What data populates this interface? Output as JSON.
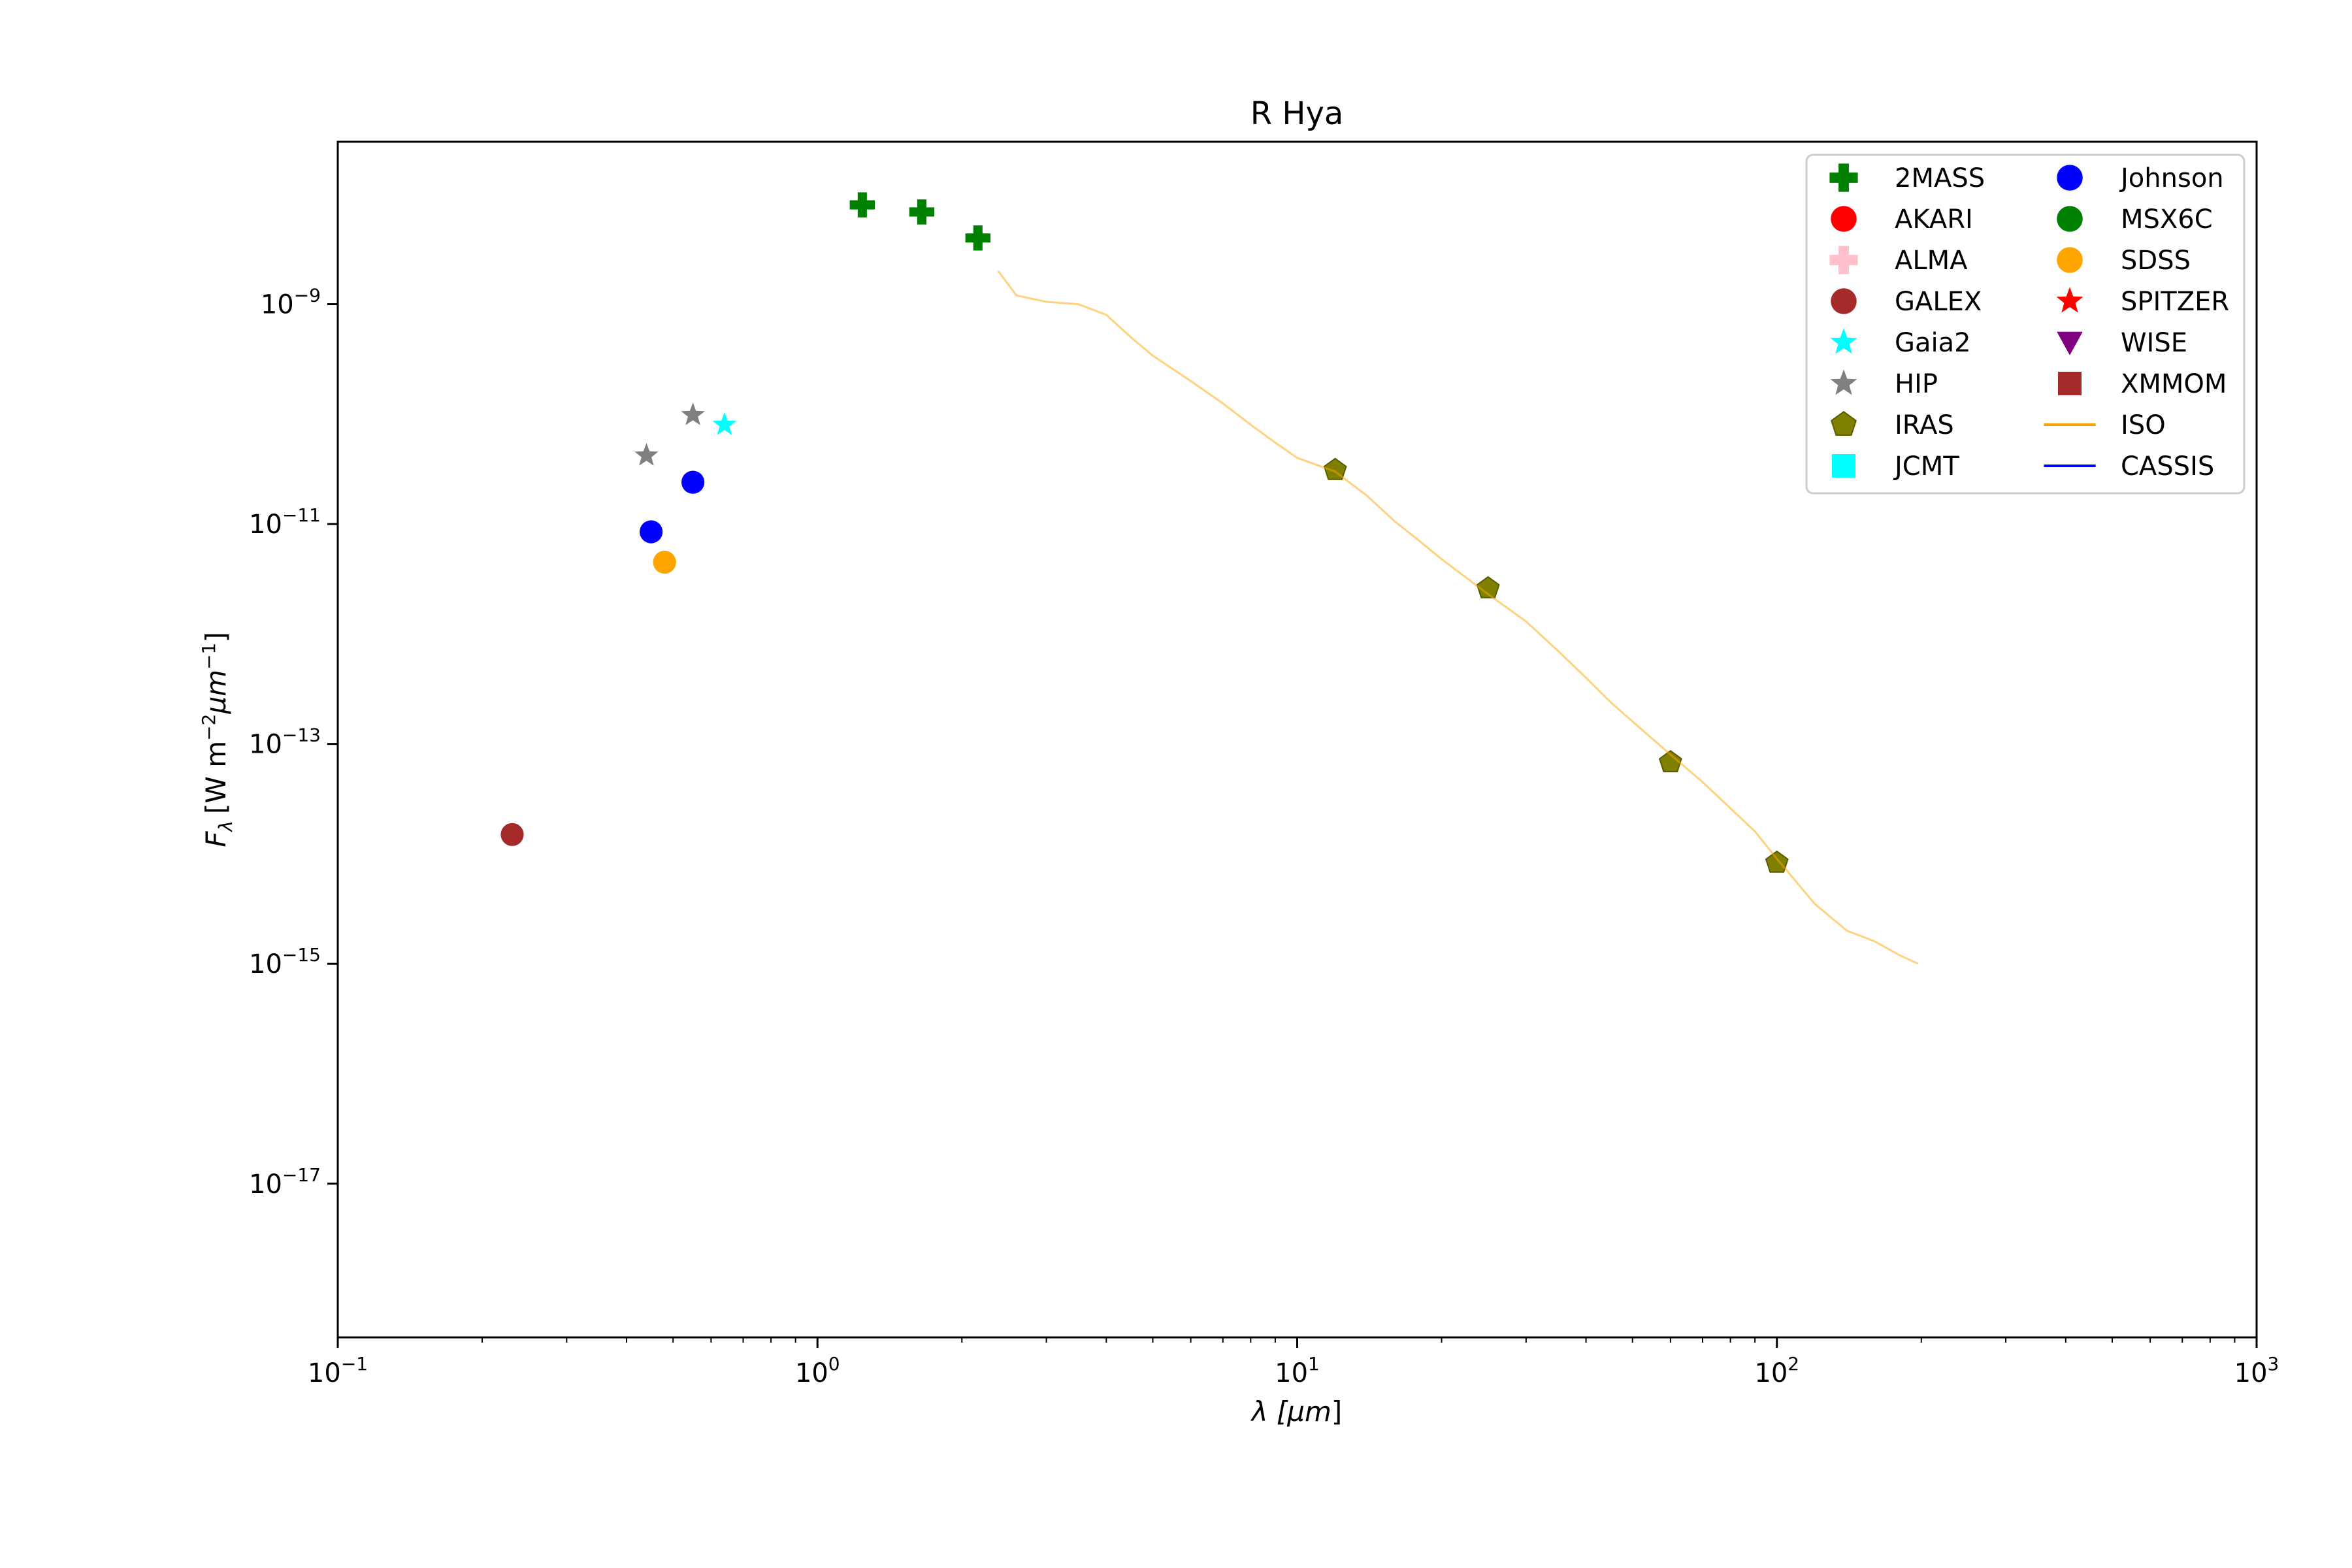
{
  "chart_data": {
    "type": "scatter",
    "title": "R Hya",
    "xlabel": {
      "main": "λ [",
      "unit": "μm",
      "close": "]"
    },
    "ylabel": {
      "sym": "F",
      "sub": "λ",
      "unit": "[W m",
      "exp1": "−2",
      "mid": "μm",
      "exp2": "−1",
      "close": "]"
    },
    "x_scale": "log",
    "y_scale": "log",
    "xlim": [
      0.1,
      1000
    ],
    "ylim": [
      4e-19,
      3e-08
    ],
    "x_ticks": [
      {
        "value": 0.1,
        "base": "10",
        "exp": "−1"
      },
      {
        "value": 1,
        "base": "10",
        "exp": "0"
      },
      {
        "value": 10,
        "base": "10",
        "exp": "1"
      },
      {
        "value": 100,
        "base": "10",
        "exp": "2"
      },
      {
        "value": 1000,
        "base": "10",
        "exp": "3"
      }
    ],
    "y_ticks": [
      {
        "value": 1e-09,
        "base": "10",
        "exp": "−9"
      },
      {
        "value": 1e-11,
        "base": "10",
        "exp": "−11"
      },
      {
        "value": 1e-13,
        "base": "10",
        "exp": "−13"
      },
      {
        "value": 1e-15,
        "base": "10",
        "exp": "−15"
      },
      {
        "value": 1e-17,
        "base": "10",
        "exp": "−17"
      }
    ],
    "grid": false,
    "legend_position": "top-right",
    "legend": [
      {
        "name": "2MASS",
        "marker": "plus",
        "color": "#008000"
      },
      {
        "name": "AKARI",
        "marker": "circle",
        "color": "#ff0000"
      },
      {
        "name": "ALMA",
        "marker": "plus",
        "color": "#ffc0cb"
      },
      {
        "name": "GALEX",
        "marker": "circle",
        "color": "#a52a2a"
      },
      {
        "name": "Gaia2",
        "marker": "star",
        "color": "#00ffff"
      },
      {
        "name": "HIP",
        "marker": "star",
        "color": "#808080"
      },
      {
        "name": "IRAS",
        "marker": "pentagon",
        "color": "#808000"
      },
      {
        "name": "JCMT",
        "marker": "square",
        "color": "#00ffff"
      },
      {
        "name": "Johnson",
        "marker": "circle",
        "color": "#0000ff"
      },
      {
        "name": "MSX6C",
        "marker": "circle",
        "color": "#008000"
      },
      {
        "name": "SDSS",
        "marker": "circle",
        "color": "#ffa500"
      },
      {
        "name": "SPITZER",
        "marker": "star",
        "color": "#ff0000"
      },
      {
        "name": "WISE",
        "marker": "triangle-down",
        "color": "#800080"
      },
      {
        "name": "XMMOM",
        "marker": "square",
        "color": "#a52a2a"
      },
      {
        "name": "ISO",
        "marker": "line",
        "color": "#ffa500"
      },
      {
        "name": "CASSIS",
        "marker": "line",
        "color": "#0000ff"
      }
    ],
    "series": [
      {
        "name": "2MASS",
        "marker": "plus",
        "color": "#008000",
        "x": [
          1.24,
          1.65,
          2.16
        ],
        "y": [
          8e-09,
          6.9e-09,
          4e-09
        ]
      },
      {
        "name": "GALEX",
        "marker": "circle",
        "color": "#a52a2a",
        "x": [
          0.231
        ],
        "y": [
          1.5e-14
        ]
      },
      {
        "name": "Gaia2",
        "marker": "star",
        "color": "#00ffff",
        "x": [
          0.64
        ],
        "y": [
          8e-11
        ]
      },
      {
        "name": "HIP",
        "marker": "star",
        "color": "#808080",
        "x": [
          0.44,
          0.55
        ],
        "y": [
          4.2e-11,
          9.8e-11
        ]
      },
      {
        "name": "IRAS",
        "marker": "pentagon",
        "color": "#808000",
        "x": [
          12,
          25,
          60,
          100
        ],
        "y": [
          3.1e-11,
          2.6e-12,
          6.8e-14,
          8.3e-15
        ]
      },
      {
        "name": "Johnson",
        "marker": "circle",
        "color": "#0000ff",
        "x": [
          0.45,
          0.55
        ],
        "y": [
          8.5e-12,
          2.4e-11
        ]
      },
      {
        "name": "SDSS",
        "marker": "circle",
        "color": "#ffa500",
        "x": [
          0.48
        ],
        "y": [
          4.5e-12
        ]
      },
      {
        "name": "ISO",
        "marker": "line",
        "color": "#ffa500",
        "x": [
          2.38,
          2.6,
          3.0,
          3.5,
          4.0,
          4.5,
          5.0,
          6.0,
          7.0,
          8.0,
          9.0,
          10.0,
          12.0,
          14.0,
          16.0,
          18.0,
          20.0,
          25.0,
          30.0,
          35.0,
          40.0,
          45.0,
          50.0,
          60.0,
          70.0,
          80.0,
          90.0,
          100.0,
          110.0,
          120.0,
          140.0,
          160.0,
          180.0,
          197.0
        ],
        "y": [
          2e-09,
          1.2e-09,
          1.05e-09,
          1e-09,
          8e-10,
          5e-10,
          3.4e-10,
          2e-10,
          1.25e-10,
          8e-11,
          5.5e-11,
          4e-11,
          3e-11,
          1.8e-11,
          1.05e-11,
          7e-12,
          4.8e-12,
          2.3e-12,
          1.3e-12,
          7e-13,
          4e-13,
          2.4e-13,
          1.6e-13,
          8e-14,
          4.5e-14,
          2.6e-14,
          1.6e-14,
          9e-15,
          5.5e-15,
          3.5e-15,
          2e-15,
          1.6e-15,
          1.2e-15,
          1e-15
        ]
      }
    ]
  }
}
